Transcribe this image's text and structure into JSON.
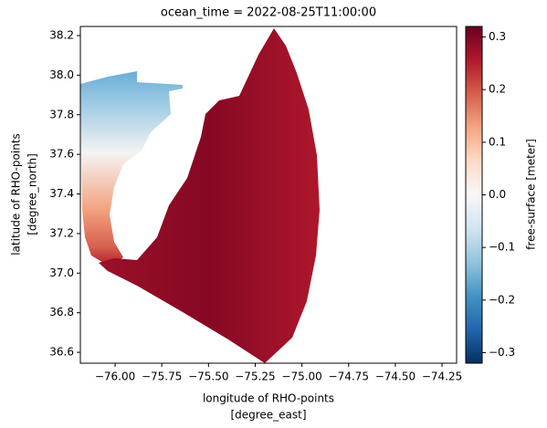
{
  "chart_data": {
    "type": "pcolormesh",
    "title": "ocean_time = 2022-08-25T11:00:00",
    "x_label": [
      "longitude of RHO-points",
      "[degree_east]"
    ],
    "y_label": [
      "latitude of RHO-points",
      "[degree_north]"
    ],
    "xlim": [
      -76.186,
      -74.172
    ],
    "ylim": [
      36.545,
      38.246
    ],
    "xticks": [
      {
        "value": -76,
        "label": "−76.00"
      },
      {
        "value": -75.75,
        "label": "−75.75"
      },
      {
        "value": -75.5,
        "label": "−75.50"
      },
      {
        "value": -75.25,
        "label": "−75.25"
      },
      {
        "value": -75,
        "label": "−75.00"
      },
      {
        "value": -74.75,
        "label": "−74.75"
      },
      {
        "value": -74.5,
        "label": "−74.50"
      },
      {
        "value": -74.25,
        "label": "−74.25"
      }
    ],
    "yticks": [
      36.6,
      36.8,
      {
        "value": 37,
        "label": "37.0"
      },
      37.2,
      37.4,
      37.6,
      37.8,
      {
        "value": 38,
        "label": "38.0"
      },
      38.2
    ],
    "colorbar": {
      "label": "free-surface [meter]",
      "lim": [
        -0.32,
        0.32
      ],
      "ticks": [
        {
          "value": -0.3,
          "label": "−0.3"
        },
        {
          "value": -0.2,
          "label": "−0.2"
        },
        {
          "value": -0.1,
          "label": "−0.1"
        },
        {
          "value": 0,
          "label": "0.0"
        },
        0.1,
        0.2,
        0.3
      ],
      "colors": [
        "#053061",
        "#2166ac",
        "#4393c3",
        "#92c5de",
        "#d1e5f0",
        "#f7f7f7",
        "#fddbc7",
        "#f4a582",
        "#d6604d",
        "#b2182b",
        "#67001f"
      ]
    }
  }
}
